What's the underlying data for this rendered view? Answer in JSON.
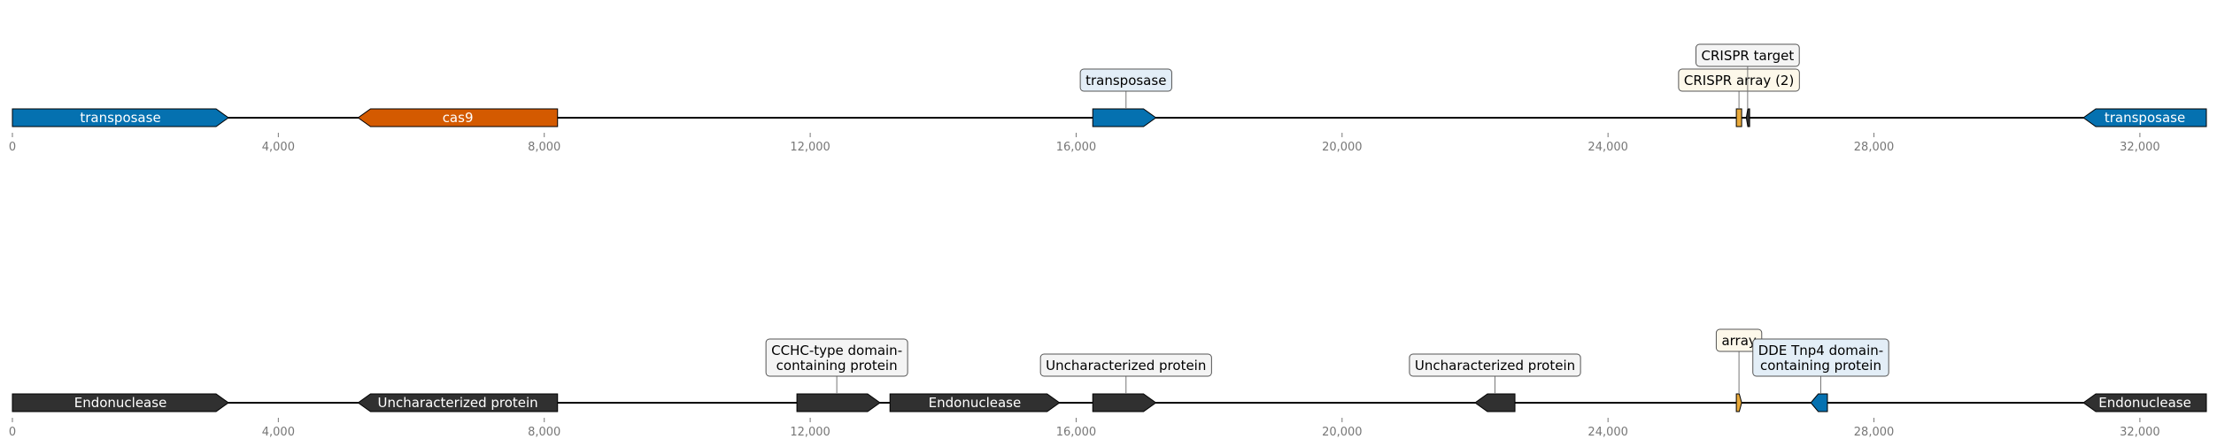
{
  "colors": {
    "transposase": "#0571b0",
    "cas9": "#d45a00",
    "crispr": "#e8a93a",
    "dark": "#303030",
    "blue_gene": "#0571b0",
    "callout_blue_bg": "#e3eef7",
    "callout_cream_bg": "#fdf8ea",
    "callout_gray_bg": "#f4f4f4"
  },
  "tracks": [
    {
      "id": "track-1",
      "axis_ticks": [
        "0",
        "4,000",
        "8,000",
        "12,000",
        "16,000",
        "20,000",
        "24,000",
        "28,000",
        "32,000"
      ],
      "axis_max": 33000,
      "features": [
        {
          "start": 0,
          "end": 3250,
          "strand": 1,
          "color": "transposase",
          "label": "transposase",
          "label_color": "#ffffff"
        },
        {
          "start": 5200,
          "end": 8200,
          "strand": -1,
          "color": "cas9",
          "label": "cas9",
          "label_color": "#ffffff"
        },
        {
          "start": 16250,
          "end": 17200,
          "strand": 1,
          "color": "transposase",
          "label": "",
          "label_color": "#ffffff"
        },
        {
          "start": 25930,
          "end": 26010,
          "strand": 0,
          "color": "crispr",
          "label": "",
          "label_color": "#000000"
        },
        {
          "start": 26080,
          "end": 26130,
          "strand": -1,
          "color": "dark",
          "label": "",
          "label_color": "#ffffff"
        },
        {
          "start": 31150,
          "end": 33000,
          "strand": -1,
          "color": "transposase",
          "label": "transposase",
          "label_color": "#ffffff"
        }
      ],
      "callouts": [
        {
          "text": [
            "transposase"
          ],
          "anchor": 16750,
          "level": 1,
          "bg": "callout_blue_bg"
        },
        {
          "text": [
            "CRISPR array (2)"
          ],
          "anchor": 25970,
          "level": 1,
          "bg": "callout_cream_bg"
        },
        {
          "text": [
            "CRISPR target"
          ],
          "anchor": 26100,
          "level": 2,
          "bg": "callout_gray_bg"
        }
      ]
    },
    {
      "id": "track-2",
      "axis_ticks": [
        "0",
        "4,000",
        "8,000",
        "12,000",
        "16,000",
        "20,000",
        "24,000",
        "28,000",
        "32,000"
      ],
      "axis_max": 33000,
      "features": [
        {
          "start": 0,
          "end": 3250,
          "strand": 1,
          "color": "dark",
          "label": "Endonuclease",
          "label_color": "#ffffff"
        },
        {
          "start": 5200,
          "end": 8200,
          "strand": -1,
          "color": "dark",
          "label": "Uncharacterized protein",
          "label_color": "#ffffff"
        },
        {
          "start": 11800,
          "end": 13050,
          "strand": 1,
          "color": "dark",
          "label": "",
          "label_color": "#ffffff"
        },
        {
          "start": 13200,
          "end": 15750,
          "strand": 1,
          "color": "dark",
          "label": "Endonuclease",
          "label_color": "#ffffff"
        },
        {
          "start": 16250,
          "end": 17200,
          "strand": 1,
          "color": "dark",
          "label": "",
          "label_color": "#ffffff"
        },
        {
          "start": 22000,
          "end": 22600,
          "strand": -1,
          "color": "dark",
          "label": "",
          "label_color": "#ffffff"
        },
        {
          "start": 25930,
          "end": 26010,
          "strand": 1,
          "color": "crispr",
          "label": "",
          "label_color": "#000000"
        },
        {
          "start": 27050,
          "end": 27300,
          "strand": -1,
          "color": "blue_gene",
          "label": "",
          "label_color": "#ffffff"
        },
        {
          "start": 31150,
          "end": 33000,
          "strand": -1,
          "color": "dark",
          "label": "Endonuclease",
          "label_color": "#ffffff"
        }
      ],
      "callouts": [
        {
          "text": [
            "CCHC-type domain-",
            "containing protein"
          ],
          "anchor": 12400,
          "level": 1,
          "bg": "callout_gray_bg"
        },
        {
          "text": [
            "Uncharacterized protein"
          ],
          "anchor": 16750,
          "level": 1,
          "bg": "callout_gray_bg"
        },
        {
          "text": [
            "Uncharacterized protein"
          ],
          "anchor": 22300,
          "level": 1,
          "bg": "callout_gray_bg"
        },
        {
          "text": [
            "array"
          ],
          "anchor": 25970,
          "level": 2,
          "bg": "callout_cream_bg"
        },
        {
          "text": [
            "DDE Tnp4 domain-",
            "containing protein"
          ],
          "anchor": 27200,
          "level": 1,
          "bg": "callout_blue_bg"
        }
      ]
    }
  ]
}
